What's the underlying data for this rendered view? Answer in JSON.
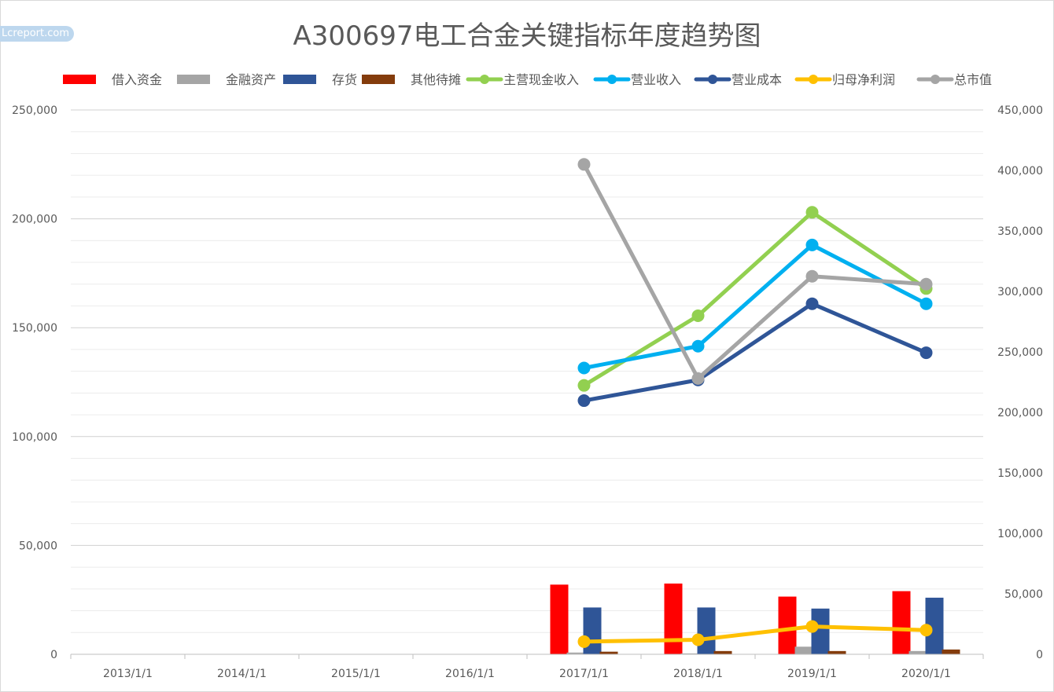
{
  "watermark": "Lcreport.com",
  "chart_data": {
    "type": "bar+line",
    "title": "A300697电工合金关键指标年度趋势图",
    "categories": [
      "2013/1/1",
      "2014/1/1",
      "2015/1/1",
      "2016/1/1",
      "2017/1/1",
      "2018/1/1",
      "2019/1/1",
      "2020/1/1"
    ],
    "left_axis": {
      "min": 0,
      "max": 250000,
      "major_step": 50000,
      "tick_labels": [
        "0",
        "50,000",
        "100,000",
        "150,000",
        "200,000",
        "250,000"
      ]
    },
    "right_axis": {
      "min": 0,
      "max": 450000,
      "major_step": 50000,
      "tick_labels": [
        "0",
        "50,000",
        "100,000",
        "150,000",
        "200,000",
        "250,000",
        "300,000",
        "350,000",
        "400,000",
        "450,000"
      ]
    },
    "grid": true,
    "legend_position": "top",
    "bar_series": [
      {
        "name": "借入资金",
        "color": "#ff0000",
        "values": [
          null,
          null,
          null,
          null,
          32000,
          32500,
          26500,
          29000
        ]
      },
      {
        "name": "金融资产",
        "color": "#a5a5a5",
        "values": [
          null,
          null,
          null,
          null,
          800,
          400,
          3500,
          1500
        ]
      },
      {
        "name": "存货",
        "color": "#2f5597",
        "values": [
          null,
          null,
          null,
          null,
          21500,
          21500,
          21000,
          26000
        ]
      },
      {
        "name": "其他待摊",
        "color": "#843c0c",
        "values": [
          null,
          null,
          null,
          null,
          1200,
          1500,
          1500,
          2200
        ]
      }
    ],
    "line_series": [
      {
        "name": "主营现金收入",
        "color": "#92d050",
        "axis": "left",
        "values": [
          null,
          null,
          null,
          null,
          123500,
          155500,
          203000,
          168000
        ]
      },
      {
        "name": "营业收入",
        "color": "#00b0f0",
        "axis": "left",
        "values": [
          null,
          null,
          null,
          null,
          131500,
          141500,
          188000,
          161000
        ]
      },
      {
        "name": "营业成本",
        "color": "#2f5597",
        "axis": "left",
        "values": [
          null,
          null,
          null,
          null,
          116500,
          126000,
          161000,
          138500
        ]
      },
      {
        "name": "归母净利润",
        "color": "#ffc000",
        "axis": "right",
        "values": [
          null,
          null,
          null,
          null,
          10500,
          12000,
          23000,
          20000
        ]
      },
      {
        "name": "总市值",
        "color": "#a5a5a5",
        "axis": "right",
        "values": [
          null,
          null,
          null,
          null,
          405000,
          228000,
          312500,
          306000
        ]
      }
    ]
  }
}
